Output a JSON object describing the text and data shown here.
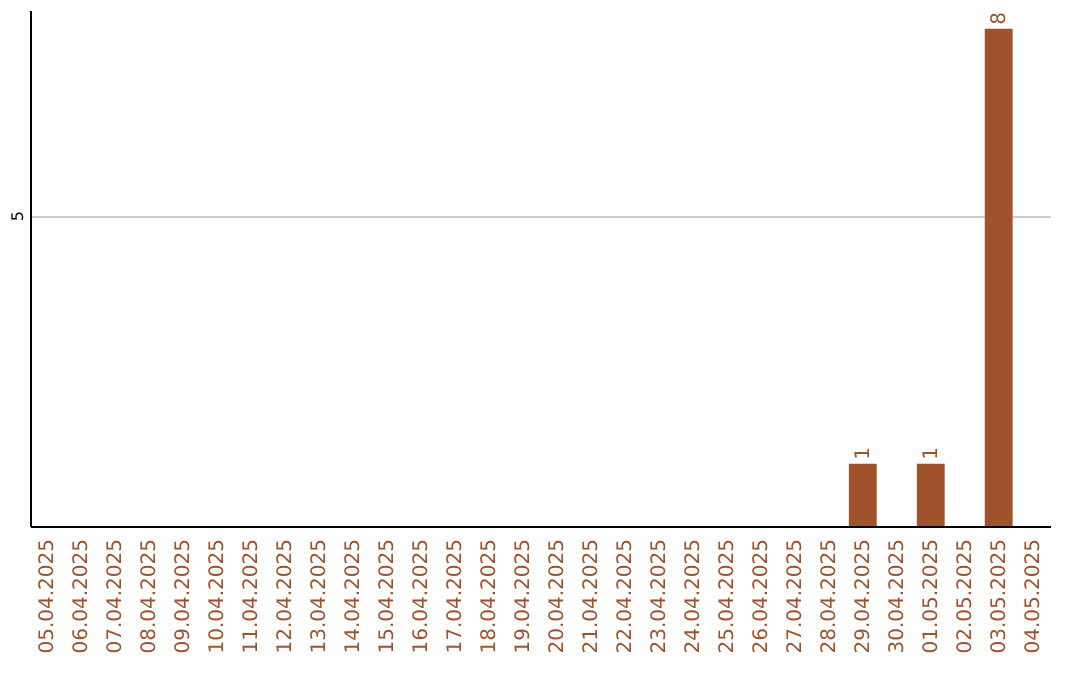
{
  "chart_data": {
    "type": "bar",
    "categories": [
      "05.04.2025",
      "06.04.2025",
      "07.04.2025",
      "08.04.2025",
      "09.04.2025",
      "10.04.2025",
      "11.04.2025",
      "12.04.2025",
      "13.04.2025",
      "14.04.2025",
      "15.04.2025",
      "16.04.2025",
      "17.04.2025",
      "18.04.2025",
      "19.04.2025",
      "20.04.2025",
      "21.04.2025",
      "22.04.2025",
      "23.04.2025",
      "24.04.2025",
      "25.04.2025",
      "26.04.2025",
      "27.04.2025",
      "28.04.2025",
      "29.04.2025",
      "30.04.2025",
      "01.05.2025",
      "02.05.2025",
      "03.05.2025",
      "04.05.2025"
    ],
    "values": [
      null,
      null,
      null,
      null,
      null,
      null,
      null,
      null,
      null,
      null,
      null,
      null,
      null,
      null,
      null,
      null,
      null,
      null,
      null,
      null,
      null,
      null,
      null,
      null,
      1,
      null,
      1,
      null,
      8,
      null
    ],
    "data_labels": true,
    "color": "#a0522d",
    "ylim": [
      0,
      8.3
    ],
    "yticks": [
      5
    ],
    "grid": "y"
  }
}
